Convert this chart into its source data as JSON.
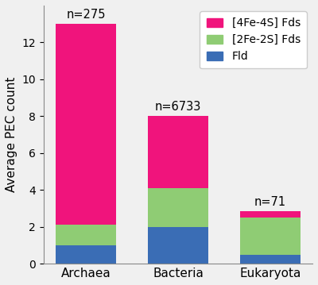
{
  "categories": [
    "Archaea",
    "Bacteria",
    "Eukaryota"
  ],
  "n_labels": [
    "n=275",
    "n=6733",
    "n=71"
  ],
  "fld": [
    1.0,
    2.0,
    0.5
  ],
  "fe2s2": [
    1.1,
    2.1,
    2.0
  ],
  "fe4s4": [
    10.9,
    3.9,
    0.35
  ],
  "color_fld": "#3a6db5",
  "color_fe2s2": "#8fcc74",
  "color_fe4s4": "#f0147c",
  "ylabel": "Average PEC count",
  "ylim": [
    0,
    14
  ],
  "yticks": [
    0,
    2,
    4,
    6,
    8,
    10,
    12
  ],
  "legend_labels": [
    "[4Fe-4S] Fds",
    "[2Fe-2S] Fds",
    "Fld"
  ],
  "bar_width": 0.65,
  "figure_bg": "#f0f0f0",
  "axes_bg": "#f0f0f0",
  "n_label_fontsize": 10.5,
  "axis_fontsize": 11,
  "tick_fontsize": 10,
  "legend_fontsize": 10
}
